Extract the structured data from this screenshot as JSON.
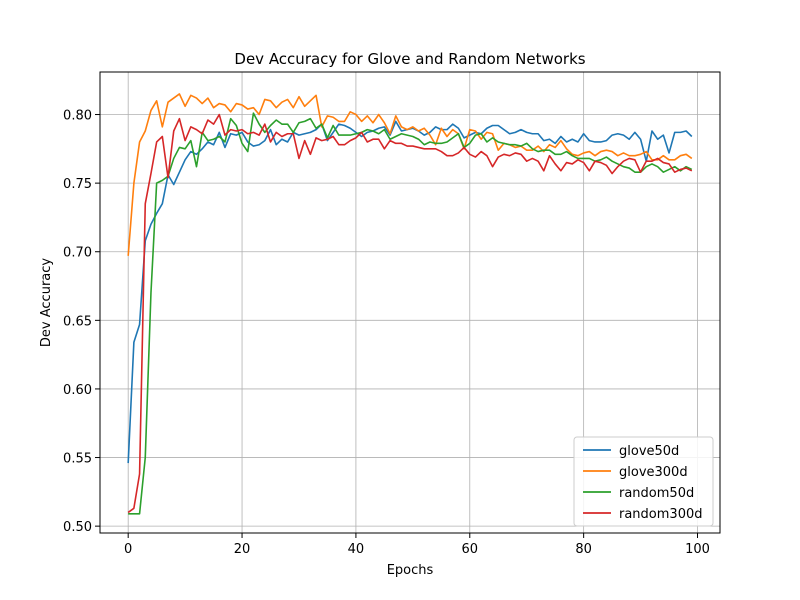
{
  "chart_data": {
    "type": "line",
    "title": "Dev Accuracy for Glove and Random Networks",
    "xlabel": "Epochs",
    "ylabel": "Dev Accuracy",
    "xlim": [
      -4.95,
      103.95
    ],
    "ylim": [
      0.495,
      0.831
    ],
    "xticks": [
      0,
      20,
      40,
      60,
      80,
      100
    ],
    "yticks": [
      0.5,
      0.55,
      0.6,
      0.65,
      0.7,
      0.75,
      0.8
    ],
    "grid": true,
    "legend_position": "lower-right",
    "x": [
      0,
      1,
      2,
      3,
      4,
      5,
      6,
      7,
      8,
      9,
      10,
      11,
      12,
      13,
      14,
      15,
      16,
      17,
      18,
      19,
      20,
      21,
      22,
      23,
      24,
      25,
      26,
      27,
      28,
      29,
      30,
      31,
      32,
      33,
      34,
      35,
      36,
      37,
      38,
      39,
      40,
      41,
      42,
      43,
      44,
      45,
      46,
      47,
      48,
      49,
      50,
      51,
      52,
      53,
      54,
      55,
      56,
      57,
      58,
      59,
      60,
      61,
      62,
      63,
      64,
      65,
      66,
      67,
      68,
      69,
      70,
      71,
      72,
      73,
      74,
      75,
      76,
      77,
      78,
      79,
      80,
      81,
      82,
      83,
      84,
      85,
      86,
      87,
      88,
      89,
      90,
      91,
      92,
      93,
      94,
      95,
      96,
      97,
      98,
      99
    ],
    "series": [
      {
        "name": "glove50d",
        "color": "#1f77b4",
        "values": [
          0.546,
          0.634,
          0.647,
          0.708,
          0.72,
          0.728,
          0.735,
          0.756,
          0.749,
          0.758,
          0.767,
          0.773,
          0.771,
          0.775,
          0.78,
          0.778,
          0.787,
          0.776,
          0.786,
          0.785,
          0.787,
          0.78,
          0.777,
          0.778,
          0.781,
          0.789,
          0.778,
          0.782,
          0.78,
          0.787,
          0.785,
          0.786,
          0.787,
          0.789,
          0.793,
          0.781,
          0.787,
          0.793,
          0.792,
          0.79,
          0.787,
          0.784,
          0.787,
          0.788,
          0.79,
          0.791,
          0.785,
          0.795,
          0.788,
          0.789,
          0.79,
          0.788,
          0.785,
          0.787,
          0.791,
          0.789,
          0.789,
          0.793,
          0.79,
          0.783,
          0.785,
          0.787,
          0.786,
          0.79,
          0.792,
          0.792,
          0.789,
          0.786,
          0.787,
          0.789,
          0.787,
          0.786,
          0.786,
          0.781,
          0.782,
          0.779,
          0.784,
          0.78,
          0.782,
          0.78,
          0.786,
          0.781,
          0.78,
          0.78,
          0.781,
          0.785,
          0.786,
          0.785,
          0.782,
          0.787,
          0.782,
          0.766,
          0.788,
          0.782,
          0.785,
          0.772,
          0.787,
          0.787,
          0.788,
          0.784
        ]
      },
      {
        "name": "glove300d",
        "color": "#ff7f0e",
        "values": [
          0.697,
          0.75,
          0.78,
          0.788,
          0.803,
          0.81,
          0.791,
          0.809,
          0.812,
          0.815,
          0.806,
          0.814,
          0.812,
          0.808,
          0.812,
          0.805,
          0.808,
          0.807,
          0.802,
          0.808,
          0.807,
          0.804,
          0.805,
          0.8,
          0.811,
          0.81,
          0.805,
          0.809,
          0.811,
          0.805,
          0.813,
          0.806,
          0.81,
          0.814,
          0.791,
          0.799,
          0.798,
          0.795,
          0.795,
          0.802,
          0.8,
          0.795,
          0.799,
          0.794,
          0.8,
          0.794,
          0.786,
          0.799,
          0.791,
          0.789,
          0.791,
          0.788,
          0.79,
          0.785,
          0.778,
          0.79,
          0.784,
          0.789,
          0.786,
          0.775,
          0.789,
          0.788,
          0.782,
          0.787,
          0.786,
          0.774,
          0.779,
          0.778,
          0.776,
          0.777,
          0.774,
          0.774,
          0.777,
          0.773,
          0.778,
          0.776,
          0.781,
          0.775,
          0.771,
          0.77,
          0.772,
          0.773,
          0.77,
          0.773,
          0.774,
          0.773,
          0.77,
          0.772,
          0.77,
          0.77,
          0.771,
          0.773,
          0.767,
          0.767,
          0.77,
          0.767,
          0.767,
          0.77,
          0.771,
          0.768
        ]
      },
      {
        "name": "random50d",
        "color": "#2ca02c",
        "values": [
          0.509,
          0.509,
          0.509,
          0.55,
          0.67,
          0.75,
          0.752,
          0.755,
          0.768,
          0.776,
          0.775,
          0.781,
          0.762,
          0.787,
          0.781,
          0.782,
          0.784,
          0.78,
          0.797,
          0.792,
          0.779,
          0.773,
          0.801,
          0.793,
          0.787,
          0.792,
          0.796,
          0.793,
          0.793,
          0.787,
          0.794,
          0.795,
          0.797,
          0.79,
          0.793,
          0.783,
          0.792,
          0.785,
          0.785,
          0.785,
          0.786,
          0.787,
          0.789,
          0.788,
          0.786,
          0.789,
          0.782,
          0.784,
          0.786,
          0.785,
          0.784,
          0.782,
          0.778,
          0.78,
          0.779,
          0.779,
          0.78,
          0.783,
          0.786,
          0.776,
          0.779,
          0.785,
          0.786,
          0.78,
          0.783,
          0.78,
          0.779,
          0.778,
          0.778,
          0.777,
          0.779,
          0.775,
          0.773,
          0.774,
          0.774,
          0.771,
          0.771,
          0.773,
          0.77,
          0.768,
          0.768,
          0.768,
          0.766,
          0.767,
          0.769,
          0.766,
          0.764,
          0.762,
          0.761,
          0.758,
          0.758,
          0.762,
          0.764,
          0.762,
          0.758,
          0.76,
          0.762,
          0.759,
          0.762,
          0.76
        ]
      },
      {
        "name": "random300d",
        "color": "#d62728",
        "values": [
          0.51,
          0.513,
          0.538,
          0.735,
          0.757,
          0.78,
          0.784,
          0.754,
          0.788,
          0.797,
          0.781,
          0.791,
          0.789,
          0.786,
          0.796,
          0.793,
          0.8,
          0.785,
          0.789,
          0.788,
          0.789,
          0.786,
          0.787,
          0.785,
          0.793,
          0.78,
          0.787,
          0.784,
          0.786,
          0.786,
          0.768,
          0.781,
          0.771,
          0.783,
          0.781,
          0.782,
          0.784,
          0.778,
          0.778,
          0.781,
          0.783,
          0.787,
          0.78,
          0.782,
          0.782,
          0.775,
          0.781,
          0.779,
          0.779,
          0.777,
          0.777,
          0.776,
          0.775,
          0.775,
          0.775,
          0.773,
          0.77,
          0.77,
          0.772,
          0.776,
          0.771,
          0.769,
          0.773,
          0.77,
          0.762,
          0.769,
          0.771,
          0.77,
          0.772,
          0.771,
          0.766,
          0.768,
          0.766,
          0.759,
          0.77,
          0.764,
          0.759,
          0.765,
          0.764,
          0.767,
          0.765,
          0.759,
          0.766,
          0.765,
          0.763,
          0.757,
          0.762,
          0.766,
          0.768,
          0.767,
          0.758,
          0.766,
          0.766,
          0.768,
          0.765,
          0.764,
          0.758,
          0.76,
          0.761,
          0.759
        ]
      }
    ]
  }
}
